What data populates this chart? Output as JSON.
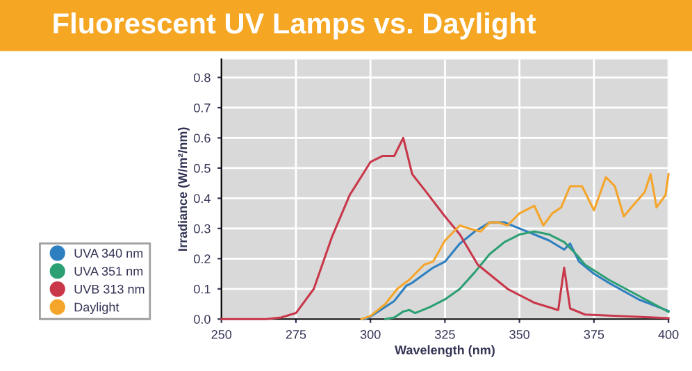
{
  "chart_data": {
    "type": "line",
    "title": "Fluorescent UV Lamps vs. Daylight",
    "xlabel": "Wavelength (nm)",
    "ylabel": "Irradiance (W/m²/nm)",
    "xlim": [
      250,
      400
    ],
    "xticks": [
      250,
      275,
      300,
      325,
      350,
      375,
      400
    ],
    "ylim": [
      0,
      0.86
    ],
    "yticks": [
      {
        "value": 0,
        "label": "0.0"
      },
      0.1,
      0.2,
      0.3,
      0.4,
      0.5,
      0.6,
      0.7,
      0.8
    ],
    "grid": true,
    "legend": "left",
    "marker": "none",
    "line_style": "solid",
    "series": [
      {
        "name": "UVA 340 nm",
        "color": "#2e7fc0",
        "x": [
          298,
          300,
          308,
          312,
          314,
          321,
          325,
          330,
          335,
          340,
          345,
          350,
          355,
          360,
          365,
          367,
          370,
          375,
          380,
          390,
          400
        ],
        "values": [
          0,
          0.008,
          0.06,
          0.11,
          0.12,
          0.17,
          0.19,
          0.25,
          0.29,
          0.32,
          0.32,
          0.3,
          0.28,
          0.26,
          0.23,
          0.25,
          0.19,
          0.15,
          0.12,
          0.065,
          0.027
        ]
      },
      {
        "name": "UVA 351 nm",
        "color": "#2ca073",
        "x": [
          305,
          308,
          311,
          313,
          315,
          320,
          325,
          330,
          335,
          340,
          345,
          350,
          355,
          360,
          365,
          369,
          372,
          380,
          390,
          400
        ],
        "values": [
          0,
          0.005,
          0.025,
          0.03,
          0.02,
          0.04,
          0.065,
          0.1,
          0.155,
          0.215,
          0.255,
          0.28,
          0.29,
          0.28,
          0.255,
          0.215,
          0.18,
          0.13,
          0.077,
          0.024
        ]
      },
      {
        "name": "UVB 313 nm",
        "color": "#c8374a",
        "x": [
          250,
          265,
          270,
          275,
          281,
          287,
          293,
          300,
          304,
          308,
          311,
          314,
          318,
          325,
          330,
          336,
          346,
          355,
          363,
          365,
          367,
          372,
          400
        ],
        "values": [
          0,
          0,
          0.005,
          0.02,
          0.1,
          0.27,
          0.41,
          0.52,
          0.54,
          0.54,
          0.6,
          0.48,
          0.43,
          0.34,
          0.28,
          0.18,
          0.1,
          0.054,
          0.03,
          0.17,
          0.035,
          0.015,
          0.003
        ]
      },
      {
        "name": "Daylight",
        "color": "#f4a52a",
        "x": [
          297,
          300,
          305,
          309,
          313,
          318,
          321,
          325,
          330,
          333,
          337,
          340,
          343,
          346,
          350,
          355,
          358,
          361,
          364,
          367,
          371,
          375,
          379,
          382,
          385,
          388,
          392,
          394,
          396,
          399,
          400
        ],
        "values": [
          0,
          0.01,
          0.05,
          0.1,
          0.13,
          0.18,
          0.19,
          0.26,
          0.31,
          0.3,
          0.29,
          0.32,
          0.32,
          0.31,
          0.35,
          0.375,
          0.31,
          0.35,
          0.37,
          0.44,
          0.44,
          0.36,
          0.47,
          0.44,
          0.34,
          0.375,
          0.42,
          0.48,
          0.37,
          0.41,
          0.48
        ]
      }
    ]
  }
}
